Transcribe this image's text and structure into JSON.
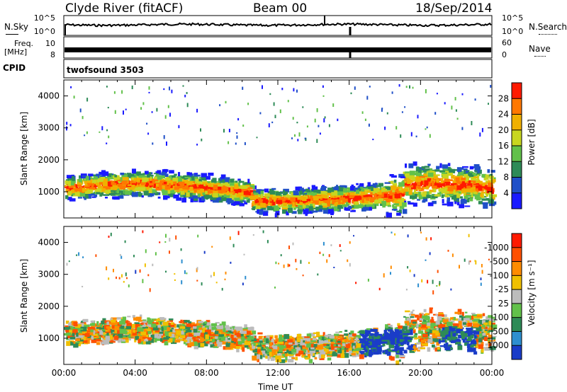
{
  "header": {
    "station": "Clyde River (fitACF)",
    "beam": "Beam 00",
    "date": "18/Sep/2014"
  },
  "aux_labels": {
    "nsky": "N.Sky",
    "nsearch": "N.Search",
    "freq_line1": "Freq.",
    "freq_line2": "[MHz]",
    "nave": "Nave",
    "cpid": "CPID",
    "cpid_value": "twofsound 3503",
    "nsky_tick_top": "10^5",
    "nsky_tick_bottom": "10^0",
    "nsearch_tick_top": "10^5",
    "nsearch_tick_bottom": "10^0",
    "freq_tick_top": "10",
    "freq_tick_bottom": "8",
    "nave_tick_top": "60",
    "nave_tick_bottom": "0"
  },
  "chart_data": [
    {
      "type": "heatmap",
      "panel": "power",
      "xlabel": "",
      "ylabel": "Slant Range [km]",
      "xlim": [
        0,
        24
      ],
      "ylim": [
        180,
        4500
      ],
      "yticks": [
        1000,
        2000,
        3000,
        4000
      ],
      "colorbar": {
        "label": "Power [dB]",
        "ticks": [
          "4",
          "8",
          "12",
          "16",
          "20",
          "24",
          "28"
        ],
        "colors": [
          "#1a1aff",
          "#2050c8",
          "#2e8b57",
          "#62c14a",
          "#c8d620",
          "#f0b000",
          "#ff7800",
          "#ff1a00"
        ]
      }
    },
    {
      "type": "heatmap",
      "panel": "velocity",
      "xlabel": "Time UT",
      "ylabel": "Slant Range [km]",
      "xlim": [
        0,
        24
      ],
      "ylim": [
        180,
        4500
      ],
      "xticks": [
        "00:00",
        "04:00",
        "08:00",
        "12:00",
        "16:00",
        "20:00",
        "00:00"
      ],
      "yticks": [
        1000,
        2000,
        3000,
        4000
      ],
      "colorbar": {
        "label": "Velocity [m s⁻¹]",
        "ticks": [
          "1000",
          "500",
          "100",
          "25",
          "-25",
          "-100",
          "-500",
          "-1000"
        ],
        "colors": [
          "#1a3cc8",
          "#2e8fd0",
          "#2e8b57",
          "#62c14a",
          "#bcbcbc",
          "#f0c000",
          "#ff8c00",
          "#ff5000",
          "#ff1a00"
        ]
      }
    }
  ]
}
